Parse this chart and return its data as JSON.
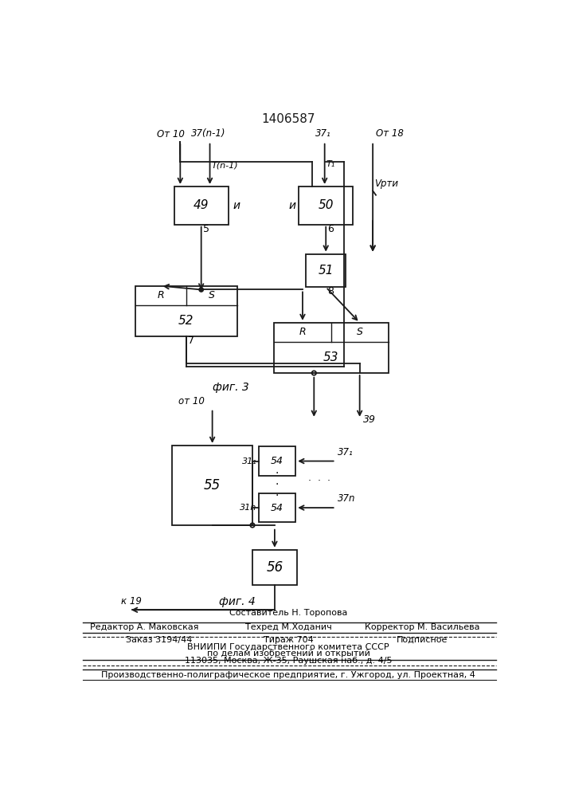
{
  "title": "1406587",
  "fig3_label": "фиг. 3",
  "fig4_label": "фиг. 4",
  "background_color": "#ffffff",
  "line_color": "#1a1a1a",
  "footer": {
    "sostavitel": "Составитель Н. Торопова",
    "tehred": "Техред М.Ходанич",
    "korrektor": "Корректор М. Васильева",
    "redaktor": "Редактор А. Маковская",
    "zakaz": "Заказ 3194/44",
    "tirazh": "Тираж 704",
    "podpisnoe": "Подписное",
    "vniipи1": "ВНИИПИ Государственного комитета СССР",
    "vniipи2": "по делам изобретений и открытий",
    "vniipи3": "113035, Москва, Ж-35, Раушская наб., д. 4/5",
    "proizv": "Производственно-полиграфическое предприятие, г. Ужгород, ул. Проектная, 4"
  }
}
